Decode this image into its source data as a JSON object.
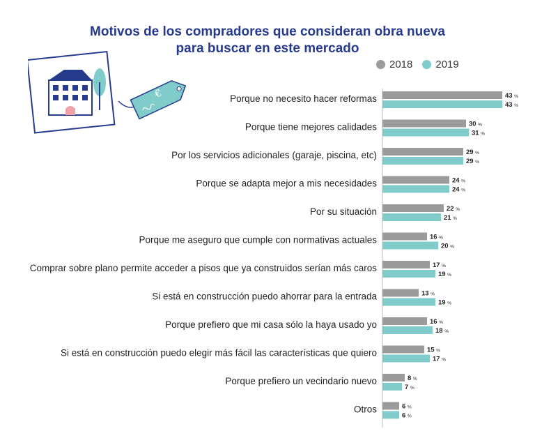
{
  "title_line1": "Motivos de los compradores que consideran obra nueva",
  "title_line2": "para buscar en este mercado",
  "chart_data": {
    "type": "bar",
    "orientation": "horizontal",
    "series": [
      {
        "name": "2018",
        "color": "#9b9b9b",
        "values": [
          43,
          30,
          29,
          24,
          22,
          16,
          17,
          13,
          16,
          15,
          8,
          6
        ]
      },
      {
        "name": "2019",
        "color": "#7fcccb",
        "values": [
          43,
          31,
          29,
          24,
          21,
          20,
          19,
          19,
          18,
          17,
          7,
          6
        ]
      }
    ],
    "categories": [
      "Porque no necesito hacer reformas",
      "Porque tiene mejores calidades",
      "Por los servicios adicionales (garaje, piscina, etc)",
      "Porque se adapta mejor a mis necesidades",
      "Por su situación",
      "Porque me aseguro que cumple con normativas actuales",
      "Comprar sobre plano permite acceder a pisos que ya construidos serían más caros",
      "Si está en construcción puedo ahorrar para la entrada",
      "Porque prefiero que mi casa sólo la haya usado yo",
      "Si está en construcción puedo elegir más fácil las características que quiero",
      "Porque prefiero un vecindario nuevo",
      "Otros"
    ],
    "value_suffix": "%",
    "legend_position": "top-right",
    "grid": false
  }
}
